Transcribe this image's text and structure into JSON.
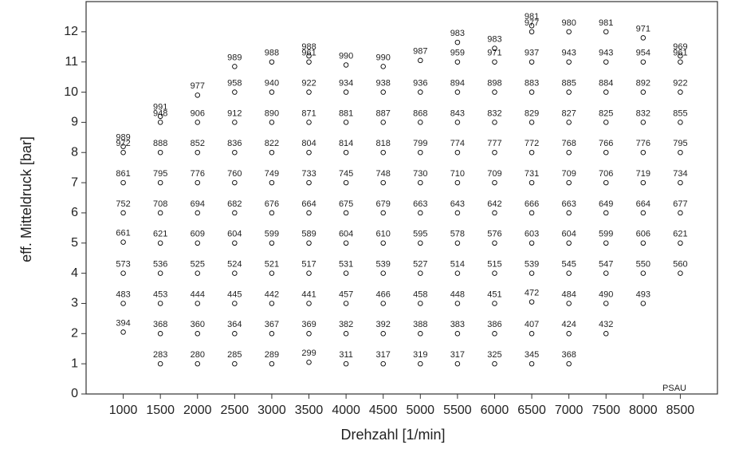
{
  "chart_data": {
    "type": "scatter",
    "x_label": "Drehzahl [1/min]",
    "y_label": "eff. Mitteldruck [bar]",
    "annotation": "PSAU",
    "xlim": [
      500,
      9000
    ],
    "ylim": [
      0,
      13
    ],
    "xticks": [
      1000,
      1500,
      2000,
      2500,
      3000,
      3500,
      4000,
      4500,
      5000,
      5500,
      6000,
      6500,
      7000,
      7500,
      8000,
      8500
    ],
    "yticks": [
      0,
      1,
      2,
      3,
      4,
      5,
      6,
      7,
      8,
      9,
      10,
      11,
      12
    ],
    "color": "#000000",
    "x": [
      1000,
      1000,
      1000,
      1000,
      1000,
      1000,
      1000,
      1000,
      1500,
      1500,
      1500,
      1500,
      1500,
      1500,
      1500,
      1500,
      1500,
      1500,
      2000,
      2000,
      2000,
      2000,
      2000,
      2000,
      2000,
      2000,
      2000,
      2000,
      2500,
      2500,
      2500,
      2500,
      2500,
      2500,
      2500,
      2500,
      2500,
      2500,
      2500,
      3000,
      3000,
      3000,
      3000,
      3000,
      3000,
      3000,
      3000,
      3000,
      3000,
      3000,
      3500,
      3500,
      3500,
      3500,
      3500,
      3500,
      3500,
      3500,
      3500,
      3500,
      3500,
      3500,
      4000,
      4000,
      4000,
      4000,
      4000,
      4000,
      4000,
      4000,
      4000,
      4000,
      4000,
      4500,
      4500,
      4500,
      4500,
      4500,
      4500,
      4500,
      4500,
      4500,
      4500,
      4500,
      5000,
      5000,
      5000,
      5000,
      5000,
      5000,
      5000,
      5000,
      5000,
      5000,
      5000,
      5500,
      5500,
      5500,
      5500,
      5500,
      5500,
      5500,
      5500,
      5500,
      5500,
      5500,
      5500,
      6000,
      6000,
      6000,
      6000,
      6000,
      6000,
      6000,
      6000,
      6000,
      6000,
      6000,
      6000,
      6500,
      6500,
      6500,
      6500,
      6500,
      6500,
      6500,
      6500,
      6500,
      6500,
      6500,
      6500,
      6500,
      7000,
      7000,
      7000,
      7000,
      7000,
      7000,
      7000,
      7000,
      7000,
      7000,
      7000,
      7000,
      7500,
      7500,
      7500,
      7500,
      7500,
      7500,
      7500,
      7500,
      7500,
      7500,
      7500,
      8000,
      8000,
      8000,
      8000,
      8000,
      8000,
      8000,
      8000,
      8000,
      8000,
      8500,
      8500,
      8500,
      8500,
      8500,
      8500,
      8500,
      8500,
      8500
    ],
    "values": [
      2.05,
      3,
      4,
      5.03,
      6,
      7,
      8,
      8.2,
      1,
      2,
      3,
      4,
      5,
      6,
      7,
      8,
      9,
      9.2,
      1,
      2,
      3,
      4,
      5,
      6,
      7,
      8,
      9,
      9.9,
      1,
      2,
      3,
      4,
      5,
      6,
      7,
      8,
      9,
      10,
      10.85,
      1,
      2,
      3,
      4,
      5,
      6,
      7,
      8,
      9,
      10,
      11,
      1.05,
      2,
      3,
      4,
      5,
      6,
      7,
      8,
      9,
      10,
      11,
      11.2,
      1,
      2,
      3,
      4,
      5,
      6,
      7,
      8,
      9,
      10,
      10.9,
      1,
      2,
      3,
      4,
      5,
      6,
      7,
      8,
      9,
      10,
      10.85,
      1,
      2,
      3,
      4,
      5,
      6,
      7,
      8,
      9,
      10,
      11.05,
      1,
      2,
      3,
      4,
      5,
      6,
      7,
      8,
      9,
      10,
      11,
      11.65,
      1,
      2,
      3,
      4,
      5,
      6,
      7,
      8,
      9,
      10,
      11,
      11.45,
      1,
      2,
      3.05,
      4,
      5,
      6,
      7,
      8,
      9,
      10,
      11,
      12,
      12.2,
      1,
      2,
      3,
      4,
      5,
      6,
      7,
      8,
      9,
      10,
      11,
      12,
      2,
      3,
      4,
      5,
      6,
      7,
      8,
      9,
      10,
      11,
      12,
      3,
      4,
      5,
      6,
      7,
      8,
      9,
      10,
      11,
      11.8,
      4,
      5,
      6,
      7,
      8,
      9,
      10,
      11,
      11.2
    ],
    "labels": [
      394,
      483,
      573,
      661,
      752,
      861,
      972,
      989,
      283,
      368,
      453,
      536,
      621,
      708,
      795,
      888,
      948,
      991,
      280,
      360,
      444,
      525,
      609,
      694,
      776,
      852,
      906,
      977,
      285,
      364,
      445,
      524,
      604,
      682,
      760,
      836,
      912,
      958,
      989,
      289,
      367,
      442,
      521,
      599,
      676,
      749,
      822,
      890,
      940,
      988,
      299,
      369,
      441,
      517,
      589,
      664,
      733,
      804,
      871,
      922,
      961,
      988,
      311,
      382,
      457,
      531,
      604,
      675,
      745,
      814,
      881,
      934,
      990,
      317,
      392,
      466,
      539,
      610,
      679,
      748,
      818,
      887,
      938,
      990,
      319,
      388,
      458,
      527,
      595,
      663,
      730,
      799,
      868,
      936,
      987,
      317,
      383,
      448,
      514,
      578,
      643,
      710,
      774,
      843,
      894,
      959,
      983,
      325,
      386,
      451,
      515,
      576,
      642,
      709,
      777,
      832,
      898,
      971,
      983,
      345,
      407,
      472,
      539,
      603,
      666,
      731,
      772,
      829,
      883,
      937,
      977,
      981,
      368,
      424,
      484,
      545,
      604,
      663,
      709,
      768,
      827,
      885,
      943,
      980,
      432,
      490,
      547,
      599,
      649,
      706,
      766,
      825,
      884,
      943,
      981,
      493,
      550,
      606,
      664,
      719,
      776,
      832,
      892,
      954,
      971,
      560,
      621,
      677,
      734,
      795,
      855,
      922,
      961,
      969
    ]
  }
}
